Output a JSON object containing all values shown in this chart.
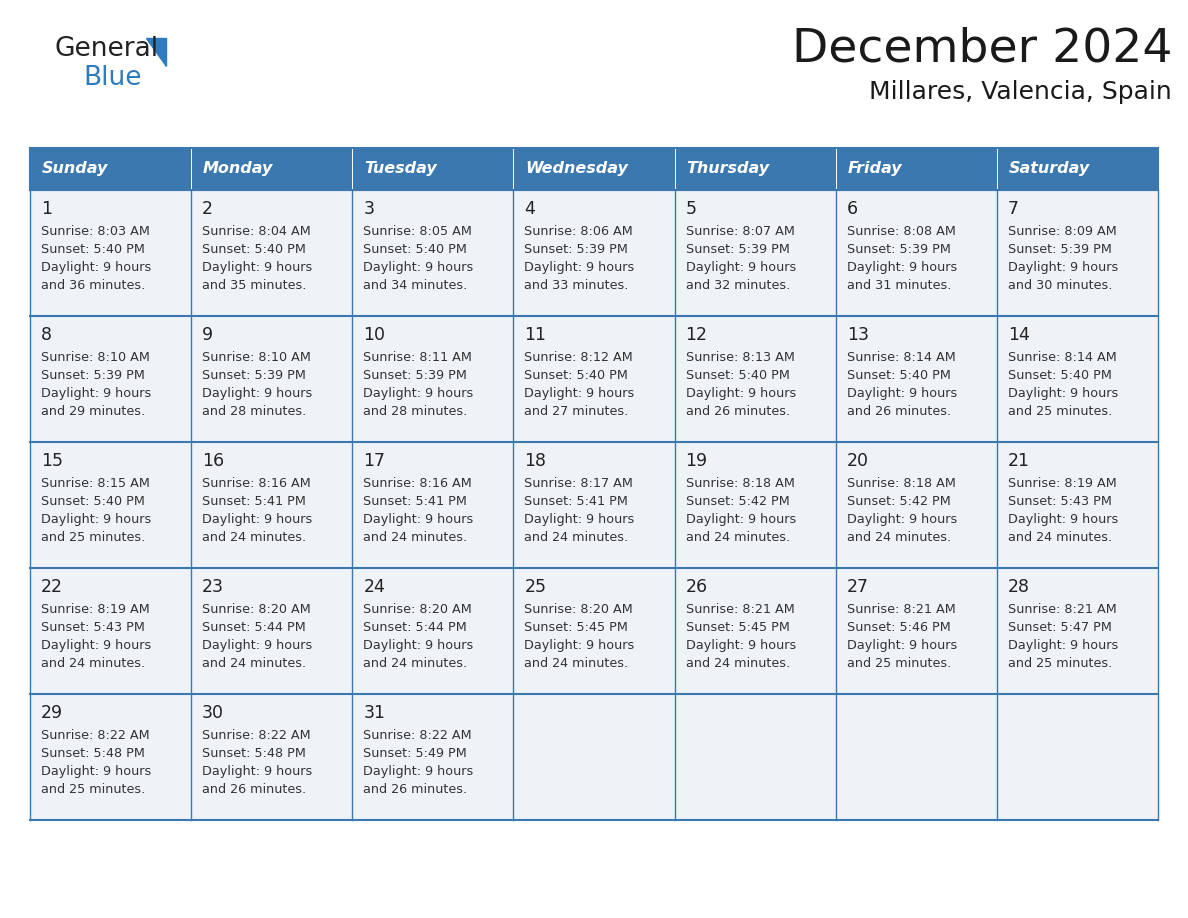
{
  "title": "December 2024",
  "subtitle": "Millares, Valencia, Spain",
  "header_color": "#3b78b0",
  "header_text_color": "#ffffff",
  "day_names": [
    "Sunday",
    "Monday",
    "Tuesday",
    "Wednesday",
    "Thursday",
    "Friday",
    "Saturday"
  ],
  "cell_bg": "#eff3f8",
  "border_color": "#3b78b0",
  "text_color": "#333333",
  "date_color": "#222222",
  "days": [
    {
      "date": 1,
      "col": 0,
      "row": 0,
      "sunrise": "8:03 AM",
      "sunset": "5:40 PM",
      "daylight_suffix": "36 minutes."
    },
    {
      "date": 2,
      "col": 1,
      "row": 0,
      "sunrise": "8:04 AM",
      "sunset": "5:40 PM",
      "daylight_suffix": "35 minutes."
    },
    {
      "date": 3,
      "col": 2,
      "row": 0,
      "sunrise": "8:05 AM",
      "sunset": "5:40 PM",
      "daylight_suffix": "34 minutes."
    },
    {
      "date": 4,
      "col": 3,
      "row": 0,
      "sunrise": "8:06 AM",
      "sunset": "5:39 PM",
      "daylight_suffix": "33 minutes."
    },
    {
      "date": 5,
      "col": 4,
      "row": 0,
      "sunrise": "8:07 AM",
      "sunset": "5:39 PM",
      "daylight_suffix": "32 minutes."
    },
    {
      "date": 6,
      "col": 5,
      "row": 0,
      "sunrise": "8:08 AM",
      "sunset": "5:39 PM",
      "daylight_suffix": "31 minutes."
    },
    {
      "date": 7,
      "col": 6,
      "row": 0,
      "sunrise": "8:09 AM",
      "sunset": "5:39 PM",
      "daylight_suffix": "30 minutes."
    },
    {
      "date": 8,
      "col": 0,
      "row": 1,
      "sunrise": "8:10 AM",
      "sunset": "5:39 PM",
      "daylight_suffix": "29 minutes."
    },
    {
      "date": 9,
      "col": 1,
      "row": 1,
      "sunrise": "8:10 AM",
      "sunset": "5:39 PM",
      "daylight_suffix": "28 minutes."
    },
    {
      "date": 10,
      "col": 2,
      "row": 1,
      "sunrise": "8:11 AM",
      "sunset": "5:39 PM",
      "daylight_suffix": "28 minutes."
    },
    {
      "date": 11,
      "col": 3,
      "row": 1,
      "sunrise": "8:12 AM",
      "sunset": "5:40 PM",
      "daylight_suffix": "27 minutes."
    },
    {
      "date": 12,
      "col": 4,
      "row": 1,
      "sunrise": "8:13 AM",
      "sunset": "5:40 PM",
      "daylight_suffix": "26 minutes."
    },
    {
      "date": 13,
      "col": 5,
      "row": 1,
      "sunrise": "8:14 AM",
      "sunset": "5:40 PM",
      "daylight_suffix": "26 minutes."
    },
    {
      "date": 14,
      "col": 6,
      "row": 1,
      "sunrise": "8:14 AM",
      "sunset": "5:40 PM",
      "daylight_suffix": "25 minutes."
    },
    {
      "date": 15,
      "col": 0,
      "row": 2,
      "sunrise": "8:15 AM",
      "sunset": "5:40 PM",
      "daylight_suffix": "25 minutes."
    },
    {
      "date": 16,
      "col": 1,
      "row": 2,
      "sunrise": "8:16 AM",
      "sunset": "5:41 PM",
      "daylight_suffix": "24 minutes."
    },
    {
      "date": 17,
      "col": 2,
      "row": 2,
      "sunrise": "8:16 AM",
      "sunset": "5:41 PM",
      "daylight_suffix": "24 minutes."
    },
    {
      "date": 18,
      "col": 3,
      "row": 2,
      "sunrise": "8:17 AM",
      "sunset": "5:41 PM",
      "daylight_suffix": "24 minutes."
    },
    {
      "date": 19,
      "col": 4,
      "row": 2,
      "sunrise": "8:18 AM",
      "sunset": "5:42 PM",
      "daylight_suffix": "24 minutes."
    },
    {
      "date": 20,
      "col": 5,
      "row": 2,
      "sunrise": "8:18 AM",
      "sunset": "5:42 PM",
      "daylight_suffix": "24 minutes."
    },
    {
      "date": 21,
      "col": 6,
      "row": 2,
      "sunrise": "8:19 AM",
      "sunset": "5:43 PM",
      "daylight_suffix": "24 minutes."
    },
    {
      "date": 22,
      "col": 0,
      "row": 3,
      "sunrise": "8:19 AM",
      "sunset": "5:43 PM",
      "daylight_suffix": "24 minutes."
    },
    {
      "date": 23,
      "col": 1,
      "row": 3,
      "sunrise": "8:20 AM",
      "sunset": "5:44 PM",
      "daylight_suffix": "24 minutes."
    },
    {
      "date": 24,
      "col": 2,
      "row": 3,
      "sunrise": "8:20 AM",
      "sunset": "5:44 PM",
      "daylight_suffix": "24 minutes."
    },
    {
      "date": 25,
      "col": 3,
      "row": 3,
      "sunrise": "8:20 AM",
      "sunset": "5:45 PM",
      "daylight_suffix": "24 minutes."
    },
    {
      "date": 26,
      "col": 4,
      "row": 3,
      "sunrise": "8:21 AM",
      "sunset": "5:45 PM",
      "daylight_suffix": "24 minutes."
    },
    {
      "date": 27,
      "col": 5,
      "row": 3,
      "sunrise": "8:21 AM",
      "sunset": "5:46 PM",
      "daylight_suffix": "25 minutes."
    },
    {
      "date": 28,
      "col": 6,
      "row": 3,
      "sunrise": "8:21 AM",
      "sunset": "5:47 PM",
      "daylight_suffix": "25 minutes."
    },
    {
      "date": 29,
      "col": 0,
      "row": 4,
      "sunrise": "8:22 AM",
      "sunset": "5:48 PM",
      "daylight_suffix": "25 minutes."
    },
    {
      "date": 30,
      "col": 1,
      "row": 4,
      "sunrise": "8:22 AM",
      "sunset": "5:48 PM",
      "daylight_suffix": "26 minutes."
    },
    {
      "date": 31,
      "col": 2,
      "row": 4,
      "sunrise": "8:22 AM",
      "sunset": "5:49 PM",
      "daylight_suffix": "26 minutes."
    }
  ],
  "num_rows": 5,
  "num_cols": 7
}
